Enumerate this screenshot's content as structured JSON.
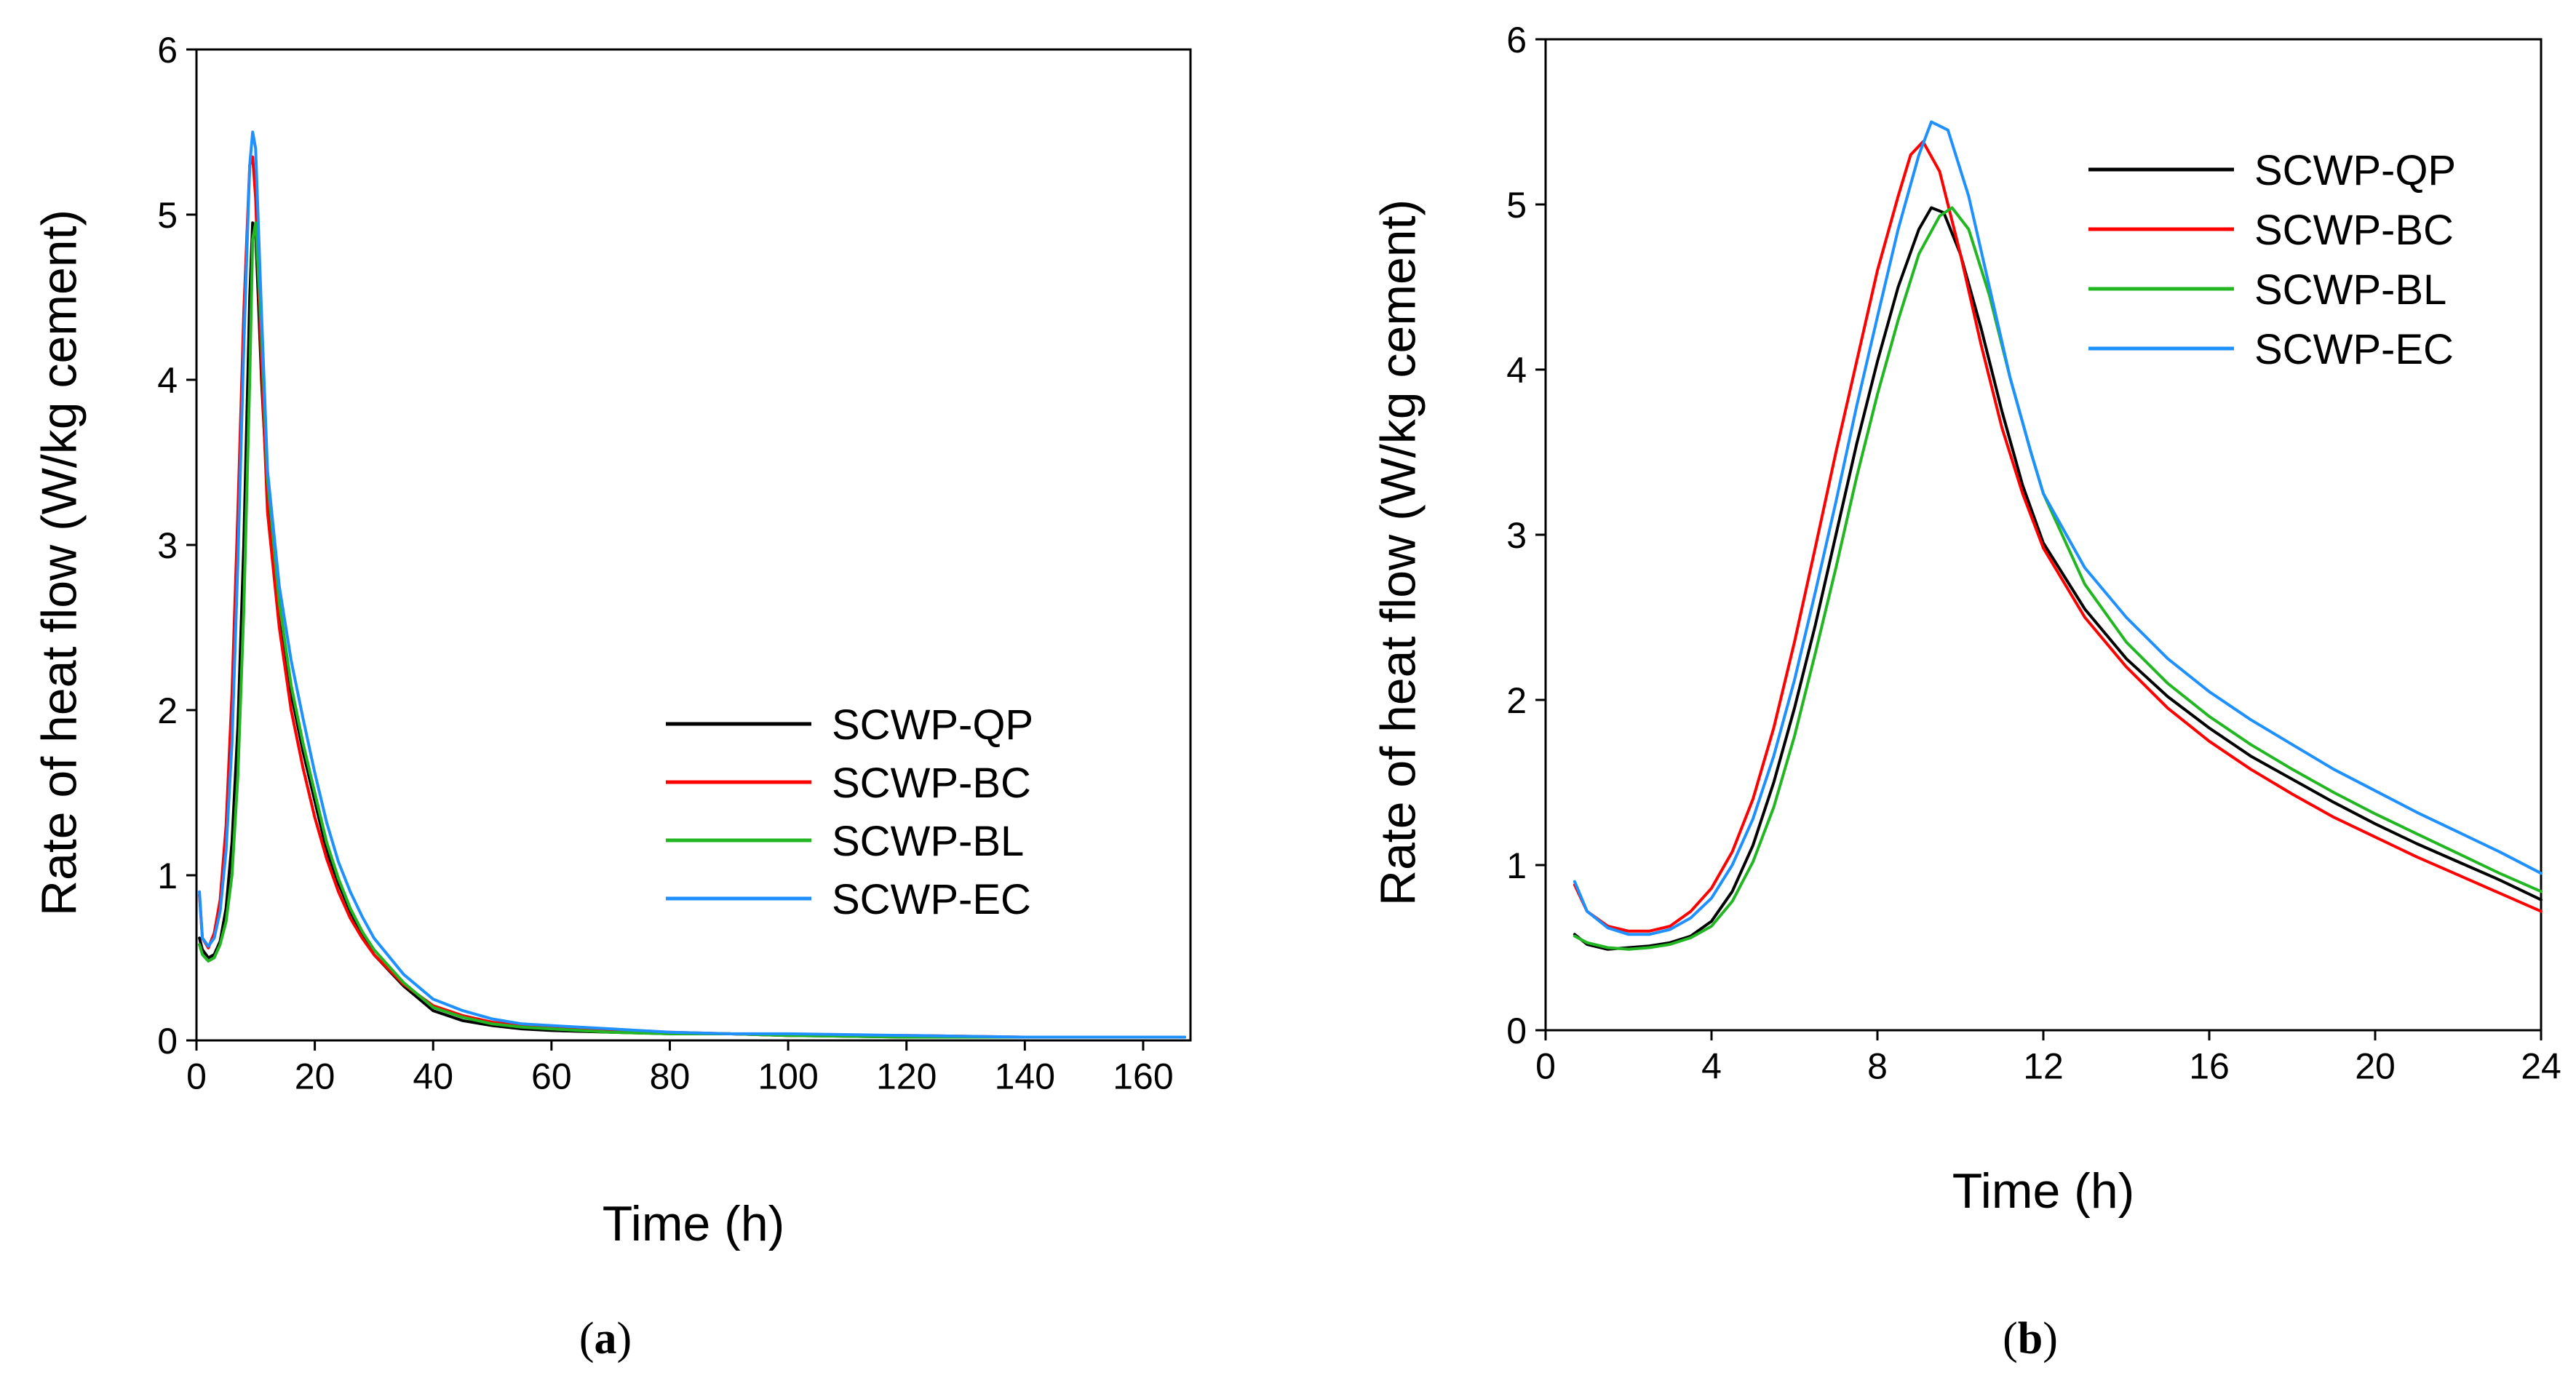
{
  "chart_data": [
    {
      "type": "line",
      "panel_label": "a",
      "xlabel": "Time (h)",
      "ylabel": "Rate of heat flow (W/kg cement)",
      "xlim": [
        0,
        168
      ],
      "ylim": [
        0,
        6
      ],
      "xticks": [
        0,
        20,
        40,
        60,
        80,
        100,
        120,
        140,
        160
      ],
      "yticks": [
        0,
        1,
        2,
        3,
        4,
        5,
        6
      ],
      "legend_position": "center-right",
      "series": [
        {
          "name": "SCWP-QP",
          "color": "#000000",
          "x": [
            0.5,
            1,
            2,
            3,
            4,
            5,
            6,
            7,
            8,
            9,
            9.5,
            10,
            11,
            12,
            14,
            16,
            18,
            20,
            22,
            24,
            26,
            28,
            30,
            35,
            40,
            45,
            50,
            55,
            60,
            70,
            80,
            90,
            100,
            120,
            140,
            160,
            167
          ],
          "y": [
            0.62,
            0.55,
            0.5,
            0.52,
            0.6,
            0.8,
            1.2,
            1.9,
            3.0,
            4.5,
            4.95,
            4.9,
            4.0,
            3.3,
            2.6,
            2.1,
            1.75,
            1.45,
            1.15,
            0.95,
            0.78,
            0.64,
            0.52,
            0.33,
            0.18,
            0.12,
            0.09,
            0.07,
            0.06,
            0.05,
            0.04,
            0.04,
            0.03,
            0.02,
            0.02,
            0.02,
            0.02
          ]
        },
        {
          "name": "SCWP-BC",
          "color": "#ff0000",
          "x": [
            0.5,
            1,
            2,
            3,
            4,
            5,
            6,
            7,
            8,
            9,
            9.5,
            10,
            11,
            12,
            14,
            16,
            18,
            20,
            22,
            24,
            26,
            28,
            30,
            35,
            40,
            45,
            50,
            55,
            60,
            70,
            80,
            90,
            100,
            120,
            140,
            160,
            167
          ],
          "y": [
            0.88,
            0.62,
            0.56,
            0.65,
            0.85,
            1.3,
            2.1,
            3.2,
            4.4,
            5.3,
            5.35,
            5.1,
            4.1,
            3.2,
            2.5,
            2.0,
            1.65,
            1.35,
            1.1,
            0.9,
            0.74,
            0.62,
            0.52,
            0.34,
            0.21,
            0.15,
            0.11,
            0.09,
            0.08,
            0.06,
            0.05,
            0.04,
            0.03,
            0.03,
            0.02,
            0.02,
            0.02
          ]
        },
        {
          "name": "SCWP-BL",
          "color": "#22b722",
          "x": [
            0.5,
            1,
            2,
            3,
            4,
            5,
            6,
            7,
            8,
            9,
            9.5,
            10,
            11,
            12,
            14,
            16,
            18,
            20,
            22,
            24,
            26,
            28,
            30,
            35,
            40,
            45,
            50,
            55,
            60,
            70,
            80,
            90,
            100,
            120,
            140,
            160,
            167
          ],
          "y": [
            0.58,
            0.52,
            0.48,
            0.5,
            0.58,
            0.72,
            1.0,
            1.6,
            2.6,
            4.0,
            4.85,
            4.95,
            4.3,
            3.4,
            2.65,
            2.15,
            1.8,
            1.5,
            1.2,
            0.98,
            0.8,
            0.66,
            0.55,
            0.35,
            0.2,
            0.14,
            0.1,
            0.08,
            0.07,
            0.05,
            0.04,
            0.04,
            0.03,
            0.02,
            0.02,
            0.02,
            0.02
          ]
        },
        {
          "name": "SCWP-EC",
          "color": "#1e90ff",
          "x": [
            0.5,
            1,
            2,
            3,
            4,
            5,
            6,
            7,
            8,
            9,
            9.5,
            10,
            11,
            12,
            14,
            16,
            18,
            20,
            22,
            24,
            26,
            28,
            30,
            35,
            40,
            45,
            50,
            55,
            60,
            70,
            80,
            90,
            100,
            120,
            140,
            160,
            167
          ],
          "y": [
            0.9,
            0.62,
            0.57,
            0.62,
            0.78,
            1.15,
            1.8,
            2.9,
            4.2,
            5.3,
            5.5,
            5.4,
            4.4,
            3.45,
            2.75,
            2.3,
            1.95,
            1.62,
            1.32,
            1.08,
            0.9,
            0.75,
            0.62,
            0.4,
            0.25,
            0.18,
            0.13,
            0.1,
            0.09,
            0.07,
            0.05,
            0.04,
            0.04,
            0.03,
            0.02,
            0.02,
            0.02
          ]
        }
      ]
    },
    {
      "type": "line",
      "panel_label": "b",
      "xlabel": "Time (h)",
      "ylabel": "Rate of heat flow (W/kg cement)",
      "xlim": [
        0,
        24
      ],
      "ylim": [
        0,
        6
      ],
      "xticks": [
        0,
        4,
        8,
        12,
        16,
        20,
        24
      ],
      "yticks": [
        0,
        1,
        2,
        3,
        4,
        5,
        6
      ],
      "legend_position": "top-right",
      "series": [
        {
          "name": "SCWP-QP",
          "color": "#000000",
          "x": [
            0.7,
            1,
            1.5,
            2,
            2.5,
            3,
            3.5,
            4,
            4.5,
            5,
            5.5,
            6,
            6.5,
            7,
            7.5,
            8,
            8.5,
            9,
            9.3,
            9.6,
            10,
            10.5,
            11,
            11.5,
            12,
            13,
            14,
            15,
            16,
            17,
            18,
            19,
            20,
            21,
            22,
            23,
            24
          ],
          "y": [
            0.58,
            0.52,
            0.49,
            0.5,
            0.51,
            0.53,
            0.57,
            0.66,
            0.84,
            1.12,
            1.5,
            1.95,
            2.45,
            3.0,
            3.55,
            4.05,
            4.5,
            4.85,
            4.98,
            4.95,
            4.7,
            4.25,
            3.75,
            3.3,
            2.95,
            2.55,
            2.25,
            2.02,
            1.83,
            1.66,
            1.52,
            1.38,
            1.25,
            1.13,
            1.02,
            0.91,
            0.79
          ]
        },
        {
          "name": "SCWP-BC",
          "color": "#ff0000",
          "x": [
            0.7,
            1,
            1.5,
            2,
            2.5,
            3,
            3.5,
            4,
            4.5,
            5,
            5.5,
            6,
            6.5,
            7,
            7.5,
            8,
            8.5,
            8.8,
            9.1,
            9.5,
            10,
            10.5,
            11,
            11.5,
            12,
            13,
            14,
            15,
            16,
            17,
            18,
            19,
            20,
            21,
            22,
            23,
            24
          ],
          "y": [
            0.88,
            0.72,
            0.63,
            0.6,
            0.6,
            0.63,
            0.72,
            0.86,
            1.08,
            1.4,
            1.83,
            2.35,
            2.92,
            3.5,
            4.05,
            4.6,
            5.05,
            5.3,
            5.38,
            5.2,
            4.7,
            4.15,
            3.65,
            3.25,
            2.92,
            2.5,
            2.2,
            1.95,
            1.75,
            1.58,
            1.43,
            1.29,
            1.17,
            1.05,
            0.94,
            0.83,
            0.72
          ]
        },
        {
          "name": "SCWP-BL",
          "color": "#22b722",
          "x": [
            0.7,
            1,
            1.5,
            2,
            2.5,
            3,
            3.5,
            4,
            4.5,
            5,
            5.5,
            6,
            6.5,
            7,
            7.5,
            8,
            8.5,
            9,
            9.5,
            9.8,
            10.2,
            10.7,
            11.2,
            11.7,
            12,
            13,
            14,
            15,
            16,
            17,
            18,
            19,
            20,
            21,
            22,
            23,
            24
          ],
          "y": [
            0.57,
            0.53,
            0.5,
            0.49,
            0.5,
            0.52,
            0.56,
            0.63,
            0.78,
            1.02,
            1.35,
            1.78,
            2.28,
            2.8,
            3.35,
            3.85,
            4.3,
            4.7,
            4.93,
            4.98,
            4.85,
            4.45,
            3.95,
            3.5,
            3.25,
            2.7,
            2.35,
            2.1,
            1.9,
            1.73,
            1.58,
            1.44,
            1.31,
            1.19,
            1.07,
            0.95,
            0.84
          ]
        },
        {
          "name": "SCWP-EC",
          "color": "#1e90ff",
          "x": [
            0.7,
            1,
            1.5,
            2,
            2.5,
            3,
            3.5,
            4,
            4.5,
            5,
            5.5,
            6,
            6.5,
            7,
            7.5,
            8,
            8.5,
            9,
            9.3,
            9.7,
            10.2,
            10.7,
            11.2,
            11.7,
            12,
            13,
            14,
            15,
            16,
            17,
            18,
            19,
            20,
            21,
            22,
            23,
            24
          ],
          "y": [
            0.9,
            0.72,
            0.62,
            0.58,
            0.58,
            0.61,
            0.68,
            0.8,
            1.0,
            1.28,
            1.66,
            2.12,
            2.65,
            3.2,
            3.78,
            4.32,
            4.85,
            5.3,
            5.5,
            5.45,
            5.05,
            4.5,
            3.95,
            3.5,
            3.25,
            2.8,
            2.5,
            2.25,
            2.05,
            1.88,
            1.73,
            1.58,
            1.45,
            1.32,
            1.2,
            1.08,
            0.95
          ]
        }
      ]
    }
  ]
}
